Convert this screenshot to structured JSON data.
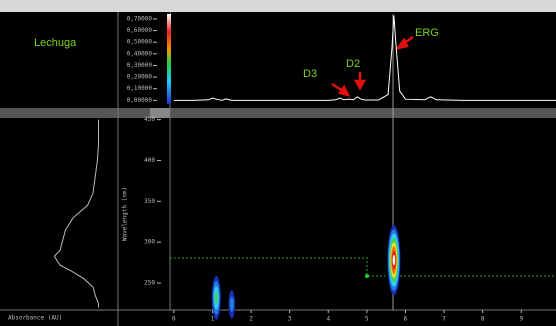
{
  "chart_data": [
    {
      "type": "line",
      "title": "Lechuga",
      "annotations": [
        "ERG",
        "D2",
        "D3"
      ],
      "x": [
        0,
        0.5,
        0.9,
        1.0,
        1.1,
        1.25,
        1.35,
        1.5,
        2.0,
        3.0,
        4.0,
        4.2,
        4.3,
        4.4,
        4.55,
        4.65,
        4.75,
        4.85,
        4.95,
        5.3,
        5.55,
        5.65,
        5.7,
        5.75,
        5.85,
        6.0,
        6.5,
        6.65,
        6.8,
        7.5,
        9.9
      ],
      "series": [
        {
          "color": "#ffffff",
          "values": [
            0,
            0,
            0.005,
            0.02,
            0.01,
            0.0,
            0.012,
            0,
            0,
            0,
            0,
            0.005,
            0.02,
            0.005,
            0.01,
            0.004,
            0.03,
            0.01,
            0.003,
            0.003,
            0.05,
            0.45,
            0.73,
            0.5,
            0.08,
            0.01,
            0.005,
            0.03,
            0.005,
            0,
            0
          ]
        }
      ],
      "xlim": [
        -0.1,
        9.9
      ],
      "ylim": [
        -0.04,
        0.76
      ],
      "yticks": [
        {
          "value": 0.7,
          "label": "0,70000"
        },
        {
          "value": 0.6,
          "label": "0,60000"
        },
        {
          "value": 0.5,
          "label": "0,50000"
        },
        {
          "value": 0.4,
          "label": "0,40000"
        },
        {
          "value": 0.3,
          "label": "0,30000"
        },
        {
          "value": 0.2,
          "label": "0,20000"
        },
        {
          "value": 0.1,
          "label": "0,10000"
        },
        {
          "value": 0,
          "label": "0,00000"
        }
      ]
    },
    {
      "type": "heatmap",
      "ylabel": "Wavelength (nm)",
      "x": [
        5.7,
        1.1,
        1.5
      ],
      "y": [
        278,
        232,
        224
      ],
      "values": [
        1.0,
        0.5,
        0.2
      ],
      "xlim": [
        -0.1,
        9.9
      ],
      "ylim": [
        217,
        452
      ],
      "xticks": [
        0,
        1,
        2,
        3,
        4,
        5,
        6,
        7,
        8,
        9
      ],
      "yticks": [
        450,
        400,
        350,
        300,
        250
      ]
    },
    {
      "type": "spectrum",
      "xlabel": "Absorbance (AU)",
      "y": [
        450,
        420,
        400,
        380,
        360,
        345,
        330,
        315,
        300,
        290,
        283,
        278,
        272,
        265,
        255,
        245,
        235,
        225,
        220
      ],
      "series": [
        {
          "color": "#bbbbbb",
          "values": [
            0.85,
            0.85,
            0.84,
            0.82,
            0.8,
            0.75,
            0.62,
            0.55,
            0.52,
            0.5,
            0.45,
            0.47,
            0.5,
            0.6,
            0.72,
            0.8,
            0.82,
            0.85,
            0.85
          ]
        }
      ],
      "xlim": [
        0,
        1
      ],
      "ylim": [
        217,
        452
      ]
    }
  ]
}
